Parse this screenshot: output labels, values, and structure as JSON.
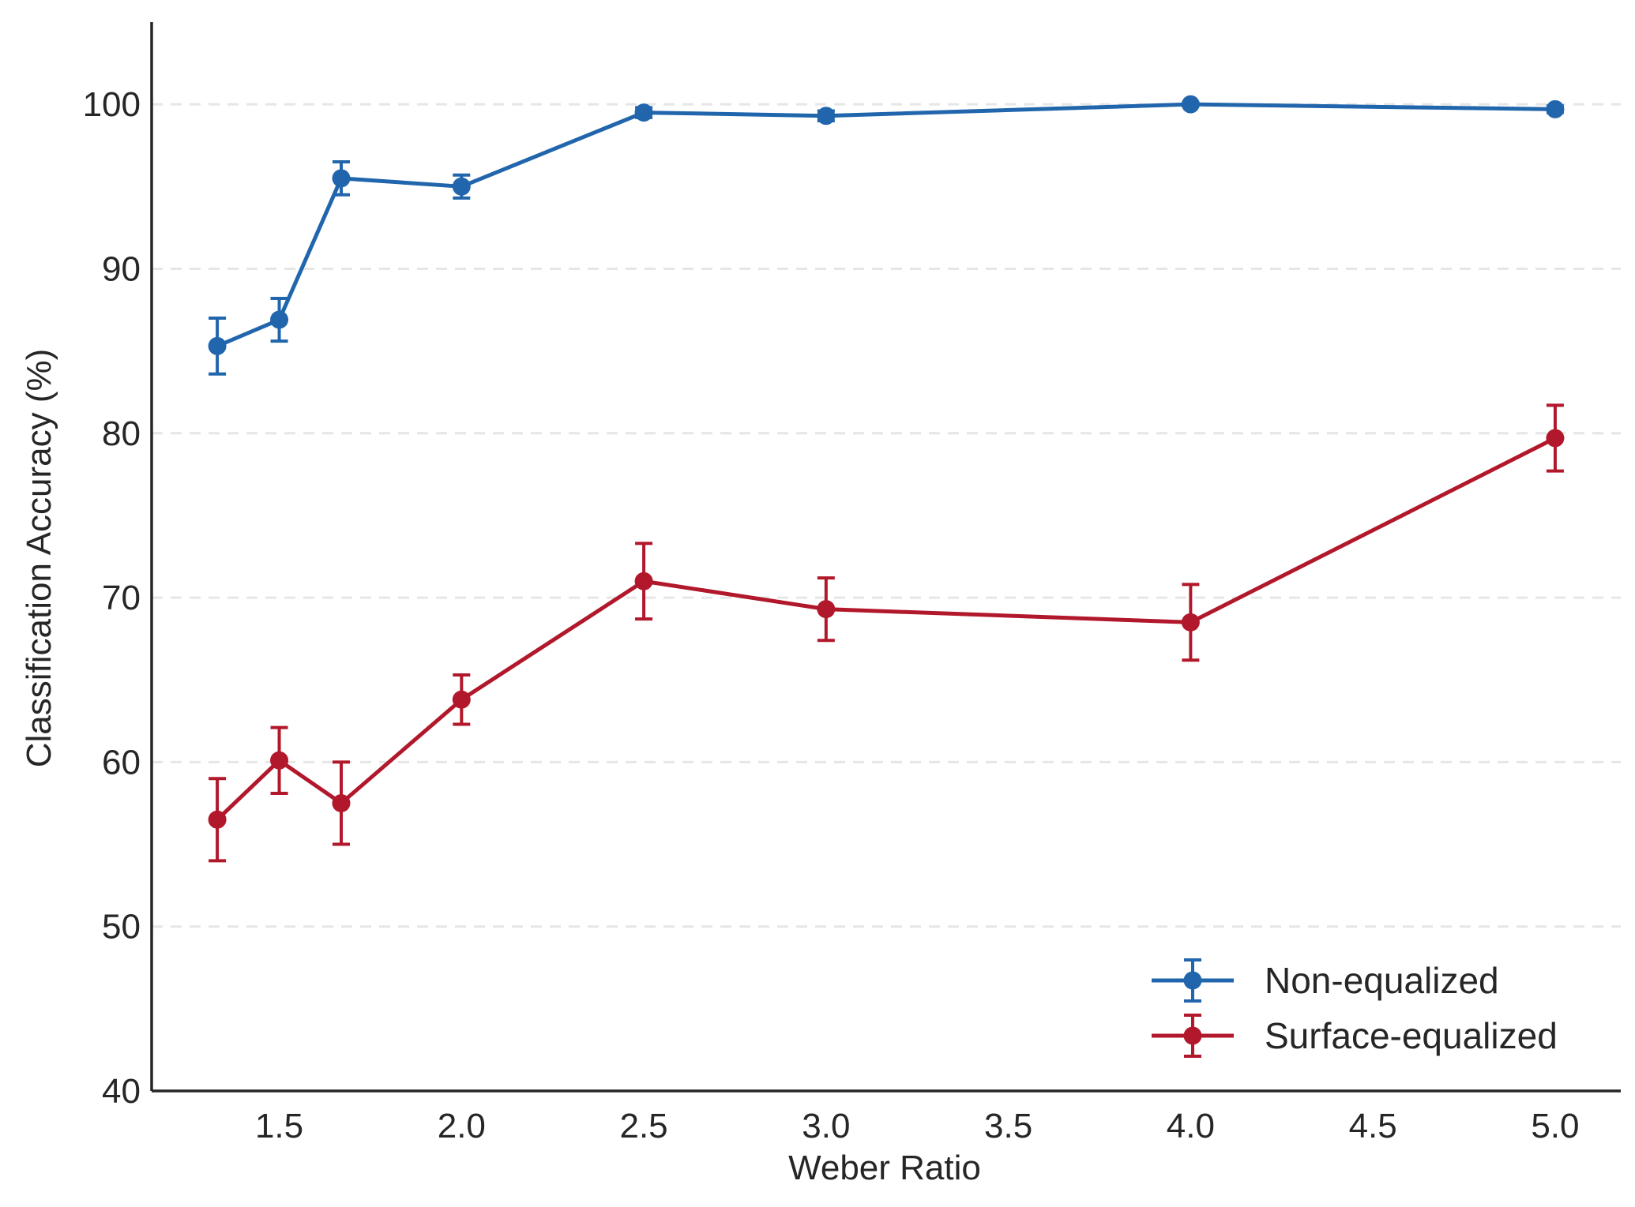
{
  "chart_data": {
    "type": "line",
    "title": "",
    "xlabel": "Weber Ratio",
    "ylabel": "Classification Accuracy (%)",
    "xlim": [
      1.15,
      5.18
    ],
    "ylim": [
      40,
      105
    ],
    "xticks": [
      1.5,
      2.0,
      2.5,
      3.0,
      3.5,
      4.0,
      4.5,
      5.0
    ],
    "xtick_labels": [
      "1.5",
      "2.0",
      "2.5",
      "3.0",
      "3.5",
      "4.0",
      "4.5",
      "5.0"
    ],
    "yticks": [
      40,
      50,
      60,
      70,
      80,
      90,
      100
    ],
    "ytick_labels": [
      "40",
      "50",
      "60",
      "70",
      "80",
      "90",
      "100"
    ],
    "grid": "horizontal dashed",
    "legend_position": "lower-right",
    "x": [
      1.33,
      1.5,
      1.67,
      2.0,
      2.5,
      3.0,
      4.0,
      5.0
    ],
    "series": [
      {
        "name": "Non-equalized",
        "color": "#2166ac",
        "values": [
          85.3,
          86.9,
          95.5,
          95.0,
          99.5,
          99.3,
          100.0,
          99.7
        ],
        "errors": [
          1.7,
          1.3,
          1.0,
          0.7,
          0.3,
          0.3,
          0.1,
          0.2
        ]
      },
      {
        "name": "Surface-equalized",
        "color": "#b2182b",
        "values": [
          56.5,
          60.1,
          57.5,
          63.8,
          71.0,
          69.3,
          68.5,
          79.7
        ],
        "errors": [
          2.5,
          2.0,
          2.5,
          1.5,
          2.3,
          1.9,
          2.3,
          2.0
        ]
      }
    ]
  }
}
